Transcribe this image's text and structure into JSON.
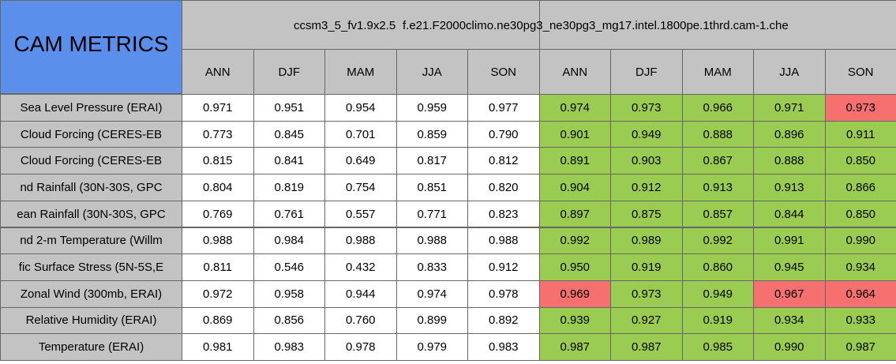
{
  "header": {
    "title": "CAM METRICS"
  },
  "groups": [
    {
      "title": "ccsm3_5_fv1.9x2.5",
      "columns": [
        "ANN",
        "DJF",
        "MAM",
        "JJA",
        "SON"
      ]
    },
    {
      "title": "f.e21.F2000climo.ne30pg3_ne30pg3_mg17.intel.1800pe.1thrd.cam-1.che",
      "columns": [
        "ANN",
        "DJF",
        "MAM",
        "JJA",
        "SON"
      ]
    }
  ],
  "rows": [
    {
      "label": "Sea Level Pressure (ERAI)",
      "values": [
        "0.971",
        "0.951",
        "0.954",
        "0.959",
        "0.977",
        "0.974",
        "0.973",
        "0.966",
        "0.971",
        "0.973"
      ],
      "colors": [
        "#ffffff",
        "#ffffff",
        "#ffffff",
        "#ffffff",
        "#ffffff",
        "#9bcc52",
        "#9bcc52",
        "#9bcc52",
        "#9bcc52",
        "#f77070"
      ]
    },
    {
      "label": "Cloud Forcing (CERES-EB",
      "values": [
        "0.773",
        "0.845",
        "0.701",
        "0.859",
        "0.790",
        "0.901",
        "0.949",
        "0.888",
        "0.896",
        "0.911"
      ],
      "colors": [
        "#ffffff",
        "#ffffff",
        "#ffffff",
        "#ffffff",
        "#ffffff",
        "#9bcc52",
        "#9bcc52",
        "#9bcc52",
        "#9bcc52",
        "#9bcc52"
      ]
    },
    {
      "label": "Cloud Forcing (CERES-EB",
      "values": [
        "0.815",
        "0.841",
        "0.649",
        "0.817",
        "0.812",
        "0.891",
        "0.903",
        "0.867",
        "0.888",
        "0.850"
      ],
      "colors": [
        "#ffffff",
        "#ffffff",
        "#ffffff",
        "#ffffff",
        "#ffffff",
        "#9bcc52",
        "#9bcc52",
        "#9bcc52",
        "#9bcc52",
        "#9bcc52"
      ]
    },
    {
      "label": "nd Rainfall (30N-30S, GPC",
      "values": [
        "0.804",
        "0.819",
        "0.754",
        "0.851",
        "0.820",
        "0.904",
        "0.912",
        "0.913",
        "0.913",
        "0.866"
      ],
      "colors": [
        "#ffffff",
        "#ffffff",
        "#ffffff",
        "#ffffff",
        "#ffffff",
        "#9bcc52",
        "#9bcc52",
        "#9bcc52",
        "#9bcc52",
        "#9bcc52"
      ]
    },
    {
      "label": "ean Rainfall (30N-30S, GPC",
      "values": [
        "0.769",
        "0.761",
        "0.557",
        "0.771",
        "0.823",
        "0.897",
        "0.875",
        "0.857",
        "0.844",
        "0.850"
      ],
      "colors": [
        "#ffffff",
        "#ffffff",
        "#ffffff",
        "#ffffff",
        "#ffffff",
        "#9bcc52",
        "#9bcc52",
        "#9bcc52",
        "#9bcc52",
        "#9bcc52"
      ]
    },
    {
      "label": "nd 2-m Temperature (Willm",
      "values": [
        "0.988",
        "0.984",
        "0.988",
        "0.988",
        "0.988",
        "0.992",
        "0.989",
        "0.992",
        "0.991",
        "0.990"
      ],
      "colors": [
        "#ffffff",
        "#ffffff",
        "#ffffff",
        "#ffffff",
        "#ffffff",
        "#9bcc52",
        "#9bcc52",
        "#9bcc52",
        "#9bcc52",
        "#9bcc52"
      ]
    },
    {
      "label": "fic Surface Stress (5N-5S,E",
      "values": [
        "0.811",
        "0.546",
        "0.432",
        "0.833",
        "0.912",
        "0.950",
        "0.919",
        "0.860",
        "0.945",
        "0.934"
      ],
      "colors": [
        "#ffffff",
        "#ffffff",
        "#ffffff",
        "#ffffff",
        "#ffffff",
        "#9bcc52",
        "#9bcc52",
        "#9bcc52",
        "#9bcc52",
        "#9bcc52"
      ]
    },
    {
      "label": "Zonal Wind (300mb, ERAI)",
      "values": [
        "0.972",
        "0.958",
        "0.944",
        "0.974",
        "0.978",
        "0.969",
        "0.973",
        "0.949",
        "0.967",
        "0.964"
      ],
      "colors": [
        "#ffffff",
        "#ffffff",
        "#ffffff",
        "#ffffff",
        "#ffffff",
        "#f77070",
        "#9bcc52",
        "#9bcc52",
        "#f77070",
        "#f77070"
      ]
    },
    {
      "label": "Relative Humidity (ERAI)",
      "values": [
        "0.869",
        "0.856",
        "0.760",
        "0.899",
        "0.892",
        "0.939",
        "0.927",
        "0.919",
        "0.934",
        "0.933"
      ],
      "colors": [
        "#ffffff",
        "#ffffff",
        "#ffffff",
        "#ffffff",
        "#ffffff",
        "#9bcc52",
        "#9bcc52",
        "#9bcc52",
        "#9bcc52",
        "#9bcc52"
      ]
    },
    {
      "label": "Temperature (ERAI)",
      "values": [
        "0.981",
        "0.983",
        "0.978",
        "0.979",
        "0.983",
        "0.987",
        "0.987",
        "0.985",
        "0.990",
        "0.987"
      ],
      "colors": [
        "#ffffff",
        "#ffffff",
        "#ffffff",
        "#ffffff",
        "#ffffff",
        "#9bcc52",
        "#9bcc52",
        "#9bcc52",
        "#9bcc52",
        "#9bcc52"
      ]
    }
  ]
}
